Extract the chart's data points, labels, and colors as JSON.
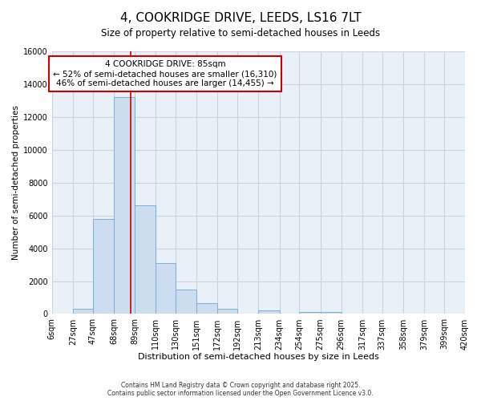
{
  "title": "4, COOKRIDGE DRIVE, LEEDS, LS16 7LT",
  "subtitle": "Size of property relative to semi-detached houses in Leeds",
  "xlabel": "Distribution of semi-detached houses by size in Leeds",
  "ylabel": "Number of semi-detached properties",
  "bar_color": "#ccddef",
  "bar_edge_color": "#7aafd4",
  "bin_edges": [
    6,
    27,
    47,
    68,
    89,
    110,
    130,
    151,
    172,
    192,
    213,
    234,
    254,
    275,
    296,
    317,
    337,
    358,
    379,
    399,
    420
  ],
  "bin_labels": [
    "6sqm",
    "27sqm",
    "47sqm",
    "68sqm",
    "89sqm",
    "110sqm",
    "130sqm",
    "151sqm",
    "172sqm",
    "192sqm",
    "213sqm",
    "234sqm",
    "254sqm",
    "275sqm",
    "296sqm",
    "317sqm",
    "337sqm",
    "358sqm",
    "379sqm",
    "399sqm",
    "420sqm"
  ],
  "bar_heights": [
    0,
    300,
    5800,
    13200,
    6600,
    3100,
    1500,
    650,
    300,
    0,
    200,
    0,
    100,
    100,
    0,
    0,
    0,
    0,
    0,
    0
  ],
  "property_size": 85,
  "property_label": "4 COOKRIDGE DRIVE: 85sqm",
  "smaller_pct": 52,
  "smaller_count": 16310,
  "larger_pct": 46,
  "larger_count": 14455,
  "ylim": [
    0,
    16000
  ],
  "yticks": [
    0,
    2000,
    4000,
    6000,
    8000,
    10000,
    12000,
    14000,
    16000
  ],
  "annotation_box_color": "#cc0000",
  "vline_color": "#cc0000",
  "background_color": "#ffffff",
  "plot_bg_color": "#e8f0f8",
  "grid_color": "#c8d4e0",
  "footer_line1": "Contains HM Land Registry data © Crown copyright and database right 2025.",
  "footer_line2": "Contains public sector information licensed under the Open Government Licence v3.0."
}
